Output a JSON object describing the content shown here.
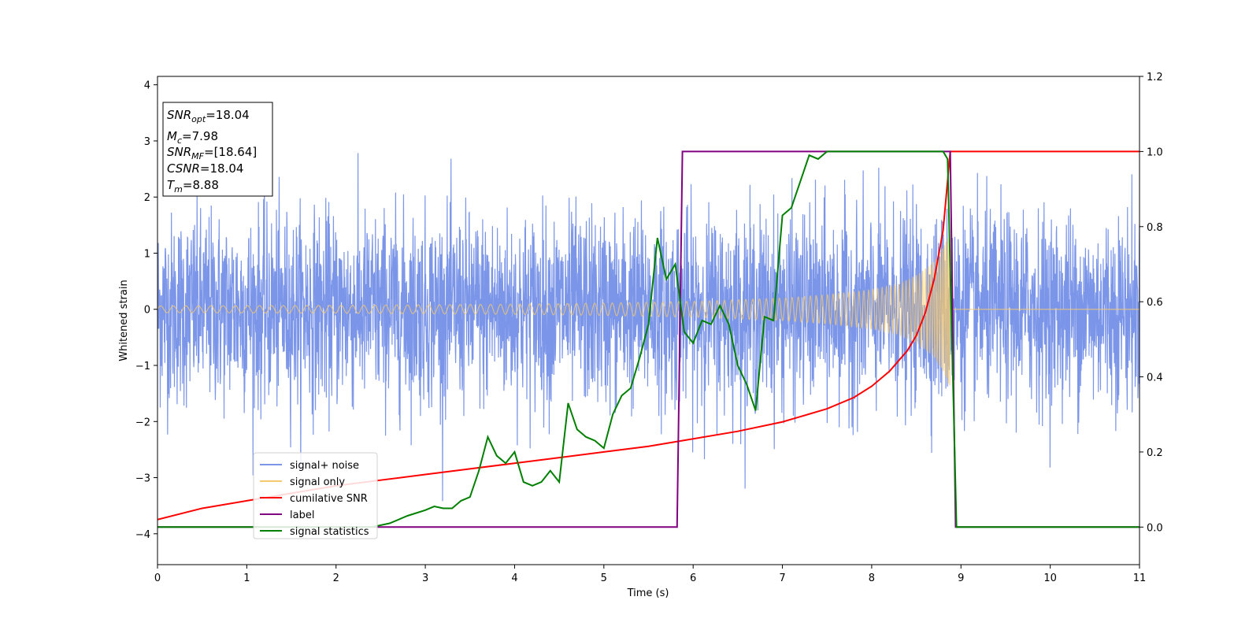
{
  "chart_data": {
    "type": "line",
    "xlabel": "Time (s)",
    "ylabel": "Whitened strain",
    "xlim": [
      0,
      11
    ],
    "ylim": [
      -4.55,
      4.15
    ],
    "y2lim": [
      -0.1,
      1.2
    ],
    "xticks": [
      0,
      1,
      2,
      3,
      4,
      5,
      6,
      7,
      8,
      9,
      10,
      11
    ],
    "yticks": [
      -4,
      -3,
      -2,
      -1,
      0,
      1,
      2,
      3,
      4
    ],
    "y2ticks": [
      0.0,
      0.2,
      0.4,
      0.6,
      0.8,
      1.0,
      1.2
    ],
    "legend": {
      "position": "lower-left"
    },
    "grid": false,
    "annotation": {
      "lines": [
        {
          "base": "SNR",
          "sub": "opt",
          "value": "=18.04"
        },
        {
          "base": "M",
          "sub": "c",
          "value": "=7.98"
        },
        {
          "base": "SNR",
          "sub": "MF",
          "value": "=[18.64]"
        },
        {
          "base": "CSNR",
          "sub": "",
          "value": "=18.04"
        },
        {
          "base": "T",
          "sub": "m",
          "value": "=8.88"
        }
      ]
    },
    "series": [
      {
        "name": "signal+ noise",
        "color": "#7b95e8",
        "axis": "left",
        "kind": "noise",
        "noise_std": 0.85,
        "signal_end": 8.88,
        "x_range": [
          0,
          11
        ]
      },
      {
        "name": "signal only",
        "color": "#f5c96e",
        "axis": "left",
        "kind": "chirp",
        "envelope": {
          "x": [
            0,
            1,
            2,
            3,
            4,
            5,
            6,
            7,
            7.5,
            8,
            8.3,
            8.5,
            8.7,
            8.8,
            8.88
          ],
          "y": [
            0.06,
            0.065,
            0.07,
            0.08,
            0.09,
            0.11,
            0.14,
            0.2,
            0.26,
            0.35,
            0.45,
            0.6,
            0.85,
            1.1,
            1.4
          ]
        },
        "x_range": [
          0,
          11
        ]
      },
      {
        "name": "cumilative SNR",
        "color": "#ff0000",
        "axis": "right",
        "x": [
          0,
          0.5,
          1,
          1.5,
          2,
          2.5,
          3,
          3.5,
          4,
          4.5,
          5,
          5.5,
          6,
          6.5,
          7,
          7.5,
          7.8,
          8.0,
          8.2,
          8.4,
          8.5,
          8.6,
          8.7,
          8.8,
          8.88,
          11
        ],
        "y": [
          0.02,
          0.05,
          0.07,
          0.09,
          0.11,
          0.125,
          0.14,
          0.155,
          0.17,
          0.185,
          0.2,
          0.215,
          0.235,
          0.255,
          0.28,
          0.315,
          0.345,
          0.375,
          0.415,
          0.47,
          0.51,
          0.57,
          0.66,
          0.79,
          1.0,
          1.0
        ]
      },
      {
        "name": "label",
        "color": "#800080",
        "axis": "right",
        "x": [
          0,
          5.82,
          5.88,
          8.88,
          8.94,
          11
        ],
        "y": [
          0,
          0,
          1,
          1,
          0,
          0
        ]
      },
      {
        "name": "signal statistics",
        "color": "#008000",
        "axis": "right",
        "x": [
          0,
          2.4,
          2.6,
          2.8,
          3.0,
          3.1,
          3.2,
          3.3,
          3.4,
          3.5,
          3.6,
          3.7,
          3.8,
          3.9,
          4.0,
          4.1,
          4.2,
          4.3,
          4.4,
          4.5,
          4.6,
          4.7,
          4.8,
          4.9,
          5.0,
          5.1,
          5.2,
          5.3,
          5.4,
          5.5,
          5.6,
          5.7,
          5.8,
          5.9,
          6.0,
          6.1,
          6.2,
          6.3,
          6.4,
          6.5,
          6.6,
          6.7,
          6.8,
          6.9,
          7.0,
          7.1,
          7.2,
          7.3,
          7.4,
          7.5,
          8.0,
          8.5,
          8.8,
          8.85,
          8.95,
          11
        ],
        "y": [
          0,
          0,
          0.01,
          0.03,
          0.045,
          0.055,
          0.05,
          0.05,
          0.07,
          0.08,
          0.15,
          0.24,
          0.19,
          0.17,
          0.2,
          0.12,
          0.11,
          0.12,
          0.15,
          0.12,
          0.33,
          0.26,
          0.24,
          0.23,
          0.21,
          0.3,
          0.35,
          0.37,
          0.45,
          0.54,
          0.77,
          0.66,
          0.7,
          0.52,
          0.49,
          0.55,
          0.54,
          0.59,
          0.54,
          0.43,
          0.38,
          0.31,
          0.56,
          0.55,
          0.83,
          0.85,
          0.92,
          0.99,
          0.98,
          1.0,
          1.0,
          1.0,
          1.0,
          0.98,
          0.0,
          0.0
        ]
      }
    ]
  }
}
